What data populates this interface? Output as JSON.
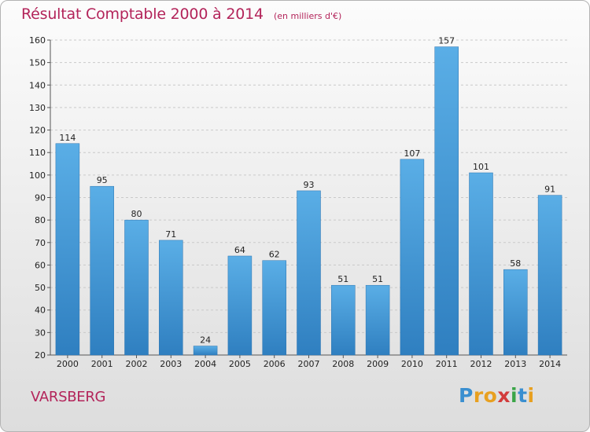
{
  "header": {
    "title": "Résultat Comptable 2000 à 2014",
    "subtitle": "(en milliers d'€)"
  },
  "footer": {
    "place": "VARSBERG",
    "logo_text": "Proxiti",
    "logo_letters": [
      {
        "char": "P",
        "color": "#3a8fd0"
      },
      {
        "char": "r",
        "color": "#e8a020"
      },
      {
        "char": "o",
        "color": "#e8a020"
      },
      {
        "char": "x",
        "color": "#d23b3b"
      },
      {
        "char": "i",
        "color": "#3aa547"
      },
      {
        "char": "t",
        "color": "#3a8fd0"
      },
      {
        "char": "i",
        "color": "#e8a020"
      }
    ]
  },
  "chart_data": {
    "type": "bar",
    "title": "Résultat Comptable 2000 à 2014",
    "subtitle": "(en milliers d'€)",
    "categories": [
      "2000",
      "2001",
      "2002",
      "2003",
      "2004",
      "2005",
      "2006",
      "2007",
      "2008",
      "2009",
      "2010",
      "2011",
      "2012",
      "2013",
      "2014"
    ],
    "values": [
      114,
      95,
      80,
      71,
      24,
      64,
      62,
      93,
      51,
      51,
      107,
      157,
      101,
      58,
      91
    ],
    "ylim": [
      20,
      160
    ],
    "yticks": [
      20,
      30,
      40,
      50,
      60,
      70,
      80,
      90,
      100,
      110,
      120,
      130,
      140,
      150,
      160
    ],
    "grid": true,
    "bar_color_top": "#5aaee6",
    "bar_color_bottom": "#2f7fc0"
  }
}
